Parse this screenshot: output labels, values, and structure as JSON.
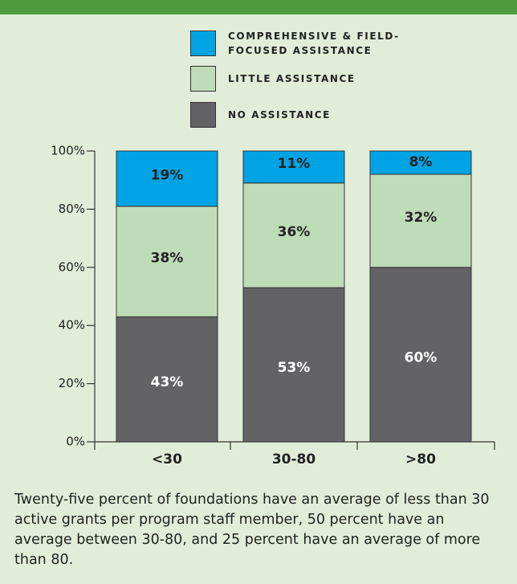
{
  "chart_data": {
    "type": "stacked_bar",
    "categories": [
      "<30",
      "30-80",
      ">80"
    ],
    "series": [
      {
        "name": "NO ASSISTANCE",
        "color": "#636366",
        "values": [
          43,
          53,
          60
        ],
        "value_labels": [
          "43%",
          "53%",
          "60%"
        ]
      },
      {
        "name": "LITTLE ASSISTANCE",
        "color": "#bfdcb9",
        "values": [
          38,
          36,
          32
        ],
        "value_labels": [
          "38%",
          "36%",
          "32%"
        ]
      },
      {
        "name": "COMPREHENSIVE & FIELD-FOCUSED ASSISTANCE",
        "color": "#00a4e4",
        "values": [
          19,
          11,
          8
        ],
        "value_labels": [
          "19%",
          "11%",
          "8%"
        ]
      }
    ],
    "ylim": [
      0,
      100
    ],
    "yticks": [
      {
        "value": 0,
        "label": "0%"
      },
      {
        "value": 20,
        "label": "20%"
      },
      {
        "value": 40,
        "label": "40%"
      },
      {
        "value": 60,
        "label": "60%"
      },
      {
        "value": 80,
        "label": "80%"
      },
      {
        "value": 100,
        "label": "100%"
      }
    ],
    "caption": "Twenty-five percent of foundations have an average of less than 30 active grants per program staff member, 50 percent have an average between 30-80, and 25 percent have an average of more than 80."
  }
}
